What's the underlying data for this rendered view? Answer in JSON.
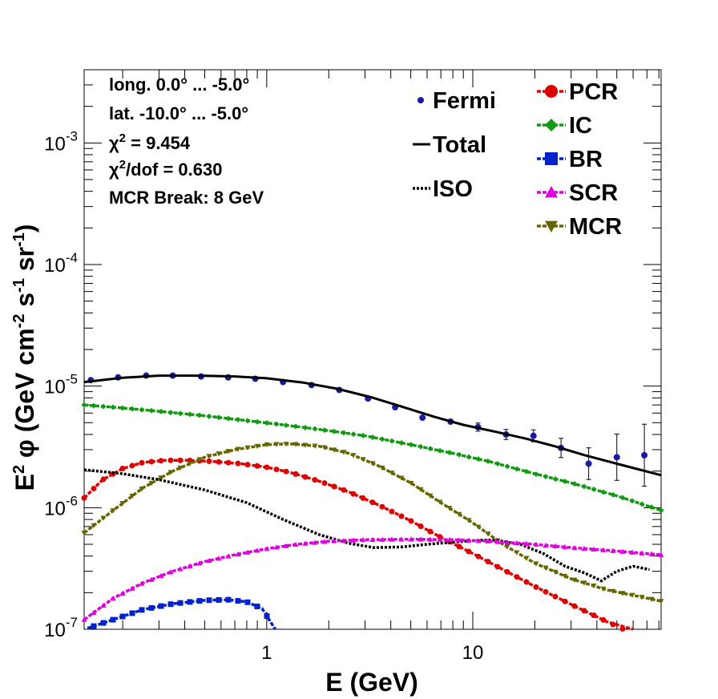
{
  "chart_data": {
    "type": "line",
    "xlabel": "E (GeV)",
    "ylabel": {
      "main": "E",
      "sup1": "2",
      "phi": " φ (GeV cm",
      "sup2": "-2",
      "mid": " s",
      "sup3": "-1",
      "mid2": " sr",
      "sup4": "-1",
      "end": ")"
    },
    "xscale": "log",
    "yscale": "log",
    "xlim": [
      0.13,
      82
    ],
    "ylim": [
      1e-07,
      0.004
    ],
    "x_ticks": [
      {
        "v": 1,
        "label": "1"
      },
      {
        "v": 10,
        "label": "10"
      }
    ],
    "y_ticks": [
      {
        "v": 1e-07,
        "base": "10",
        "exp": "-7"
      },
      {
        "v": 1e-06,
        "base": "10",
        "exp": "-6"
      },
      {
        "v": 1e-05,
        "base": "10",
        "exp": "-5"
      },
      {
        "v": 0.0001,
        "base": "10",
        "exp": "-4"
      },
      {
        "v": 0.001,
        "base": "10",
        "exp": "-3"
      }
    ],
    "annotations": [
      "long. 0.0° ... -5.0°",
      "lat. -10.0° ... -5.0°",
      {
        "pre": "χ",
        "sup": "2",
        "post": " = 9.454"
      },
      {
        "pre": "χ",
        "sup": "2",
        "post": "/dof = 0.630"
      },
      "MCR Break:  8 GeV"
    ],
    "legend_placement": "top-right",
    "legend": [
      {
        "label": "Fermi",
        "color": "#1a1aaa",
        "marker": "dot"
      },
      {
        "label": "Total",
        "color": "#000000",
        "marker": "solid"
      },
      {
        "label": "ISO",
        "color": "#000000",
        "marker": "dotted"
      },
      {
        "label": "PCR",
        "color": "#dd0000",
        "marker": "circle"
      },
      {
        "label": "IC",
        "color": "#119911",
        "marker": "diamond"
      },
      {
        "label": "BR",
        "color": "#0022cc",
        "marker": "square"
      },
      {
        "label": "SCR",
        "color": "#dd00dd",
        "marker": "triangle-up"
      },
      {
        "label": "MCR",
        "color": "#666600",
        "marker": "triangle-down"
      }
    ],
    "series": [
      {
        "name": "Fermi",
        "color": "#1a1aaa",
        "style": "points",
        "x": [
          0.14,
          0.19,
          0.26,
          0.35,
          0.48,
          0.65,
          0.88,
          1.2,
          1.65,
          2.25,
          3.1,
          4.2,
          5.7,
          7.8,
          10.6,
          14.5,
          19.7,
          26.8,
          36.5,
          50,
          68
        ],
        "y": [
          1.12e-05,
          1.18e-05,
          1.22e-05,
          1.22e-05,
          1.2e-05,
          1.18e-05,
          1.15e-05,
          1.08e-05,
          1.02e-05,
          9.3e-06,
          7.9e-06,
          6.7e-06,
          5.5e-06,
          5.1e-06,
          4.6e-06,
          4e-06,
          3.9e-06,
          3.1e-06,
          2.3e-06,
          2.6e-06,
          2.7e-06
        ],
        "err": [
          0,
          0,
          0,
          0,
          0,
          0,
          0,
          0,
          0,
          0,
          0,
          0,
          0,
          0,
          0.08,
          0.1,
          0.12,
          0.2,
          0.35,
          0.55,
          0.8
        ]
      },
      {
        "name": "Total",
        "color": "#000000",
        "style": "solid",
        "x": [
          0.13,
          0.2,
          0.3,
          0.45,
          0.7,
          1.0,
          1.5,
          2.2,
          3.2,
          4.5,
          6.5,
          9,
          13,
          18,
          25,
          35,
          50,
          82
        ],
        "y": [
          1.08e-05,
          1.17e-05,
          1.22e-05,
          1.22e-05,
          1.2e-05,
          1.16e-05,
          1.07e-05,
          9.5e-06,
          8.1e-06,
          6.8e-06,
          5.6e-06,
          4.8e-06,
          4.2e-06,
          3.7e-06,
          3.2e-06,
          2.7e-06,
          2.3e-06,
          1.85e-06
        ]
      },
      {
        "name": "IC",
        "color": "#119911",
        "style": "dashed-diamond",
        "x": [
          0.13,
          0.2,
          0.3,
          0.5,
          0.8,
          1.2,
          2,
          3,
          5,
          8,
          12,
          20,
          30,
          50,
          82
        ],
        "y": [
          7e-06,
          6.6e-06,
          6.2e-06,
          5.7e-06,
          5.2e-06,
          4.8e-06,
          4.3e-06,
          3.9e-06,
          3.3e-06,
          2.8e-06,
          2.4e-06,
          1.9e-06,
          1.6e-06,
          1.25e-06,
          9.5e-07
        ]
      },
      {
        "name": "PCR",
        "color": "#dd0000",
        "style": "dashed-circle",
        "x": [
          0.13,
          0.16,
          0.2,
          0.25,
          0.32,
          0.42,
          0.55,
          0.75,
          1.0,
          1.3,
          1.8,
          2.5,
          3.5,
          5,
          7,
          10,
          14,
          20,
          30,
          45,
          60
        ],
        "y": [
          1.2e-06,
          1.7e-06,
          2.1e-06,
          2.35e-06,
          2.45e-06,
          2.45e-06,
          2.4e-06,
          2.3e-06,
          2.15e-06,
          1.95e-06,
          1.65e-06,
          1.35e-06,
          1.05e-06,
          7.8e-07,
          5.7e-07,
          4.2e-07,
          3.1e-07,
          2.25e-07,
          1.6e-07,
          1.15e-07,
          9.2e-08
        ]
      },
      {
        "name": "MCR",
        "color": "#666600",
        "style": "dashed-triangle-down",
        "x": [
          0.13,
          0.18,
          0.25,
          0.35,
          0.5,
          0.7,
          1.0,
          1.3,
          1.8,
          2.5,
          3.5,
          5,
          7,
          10,
          14,
          20,
          30,
          45,
          65,
          82
        ],
        "y": [
          6.2e-07,
          9.5e-07,
          1.45e-06,
          2e-06,
          2.6e-06,
          3e-06,
          3.3e-06,
          3.35e-06,
          3.2e-06,
          2.8e-06,
          2.2e-06,
          1.6e-06,
          1.1e-06,
          7.5e-07,
          5e-07,
          3.5e-07,
          2.6e-07,
          2.1e-07,
          1.85e-07,
          1.7e-07
        ]
      },
      {
        "name": "ISO",
        "color": "#000000",
        "style": "dotted",
        "x": [
          0.13,
          0.2,
          0.3,
          0.5,
          0.8,
          1.2,
          1.8,
          2.5,
          3.3,
          4.5,
          6,
          8,
          11,
          13,
          17,
          22,
          28,
          35,
          42,
          50,
          60,
          72
        ],
        "y": [
          2.05e-06,
          1.9e-06,
          1.7e-06,
          1.4e-06,
          1.1e-06,
          8e-07,
          6e-07,
          5.1e-07,
          4.7e-07,
          4.75e-07,
          5e-07,
          5.2e-07,
          5.4e-07,
          5.4e-07,
          5e-07,
          4.2e-07,
          3.3e-07,
          2.9e-07,
          2.5e-07,
          3e-07,
          3.3e-07,
          3.1e-07
        ]
      },
      {
        "name": "SCR",
        "color": "#dd00dd",
        "style": "dashed-triangle-up",
        "x": [
          0.13,
          0.18,
          0.25,
          0.35,
          0.5,
          0.7,
          1.0,
          1.4,
          2,
          3,
          5,
          8,
          12,
          20,
          30,
          50,
          82
        ],
        "y": [
          1.2e-07,
          1.8e-07,
          2.4e-07,
          3e-07,
          3.6e-07,
          4.1e-07,
          4.6e-07,
          5e-07,
          5.3e-07,
          5.45e-07,
          5.5e-07,
          5.45e-07,
          5.3e-07,
          5e-07,
          4.7e-07,
          4.4e-07,
          4.1e-07
        ]
      },
      {
        "name": "BR",
        "color": "#0022cc",
        "style": "dashed-square",
        "x": [
          0.135,
          0.18,
          0.25,
          0.35,
          0.5,
          0.65,
          0.8,
          0.95,
          1.1
        ],
        "y": [
          1.02e-07,
          1.2e-07,
          1.45e-07,
          1.62e-07,
          1.73e-07,
          1.75e-07,
          1.68e-07,
          1.48e-07,
          1e-07
        ]
      }
    ]
  }
}
